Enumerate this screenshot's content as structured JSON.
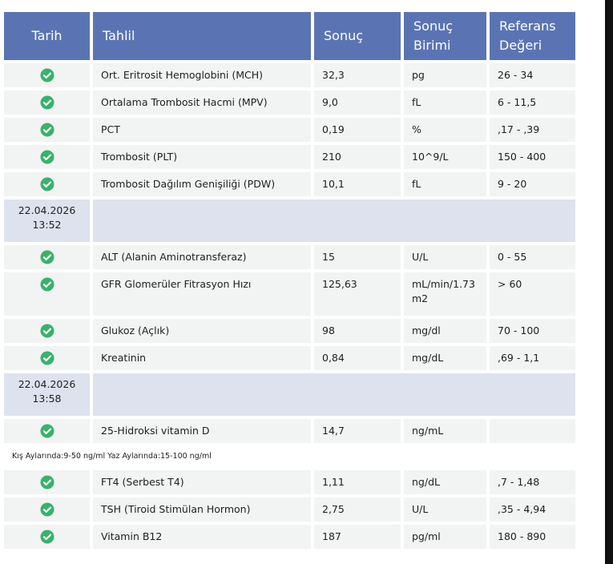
{
  "header": {
    "columns": [
      "Tarih",
      "Tahlil",
      "Sonuç",
      "Sonuç Birimi",
      "Referans Değeri"
    ]
  },
  "rows": [
    {
      "test": "Ort. Eritrosit Hemoglobini (MCH)",
      "result": "32,3",
      "unit": "pg",
      "reference": "26 - 34"
    },
    {
      "test": "Ortalama Trombosit Hacmi (MPV)",
      "result": "9,0",
      "unit": "fL",
      "reference": "6 - 11,5"
    },
    {
      "test": "PCT",
      "result": "0,19",
      "unit": "%",
      "reference": ",17 - ,39"
    },
    {
      "test": "Trombosit (PLT)",
      "result": "210",
      "unit": "10^9/L",
      "reference": "150 - 400"
    },
    {
      "test": "Trombosit Dağılım Genişiliği (PDW)",
      "result": "10,1",
      "unit": "fL",
      "reference": "9 - 20"
    },
    {
      "date": "22.04.2026",
      "time": "13:52"
    },
    {
      "test": "ALT (Alanin Aminotransferaz)",
      "result": "15",
      "unit": "U/L",
      "reference": "0 - 55"
    },
    {
      "test": "GFR Glomerüler Fitrasyon Hızı",
      "result": "125,63",
      "unit": "mL/min/1.73 m2",
      "reference": "> 60"
    },
    {
      "test": "Glukoz (Açlık)",
      "result": "98",
      "unit": "mg/dl",
      "reference": "70 - 100"
    },
    {
      "test": "Kreatinin",
      "result": "0,84",
      "unit": "mg/dL",
      "reference": ",69 - 1,1"
    },
    {
      "date": "22.04.2026",
      "time": "13:58"
    },
    {
      "test": "25-Hidroksi vitamin D",
      "result": "14,7",
      "unit": "ng/mL"
    },
    {
      "note": "Kış Aylarında:9-50 ng/ml Yaz Aylarında:15-100 ng/ml"
    },
    {
      "test": "FT4 (Serbest T4)",
      "result": "1,11",
      "unit": "ng/dL",
      "reference": ",7 - 1,48"
    },
    {
      "test": "TSH (Tiroid Stimülan Hormon)",
      "result": "2,75",
      "unit": "U/L",
      "reference": ",35 - 4,94"
    },
    {
      "test": "Vitamin B12",
      "result": "187",
      "unit": "pg/ml",
      "reference": "180 - 890"
    }
  ]
}
